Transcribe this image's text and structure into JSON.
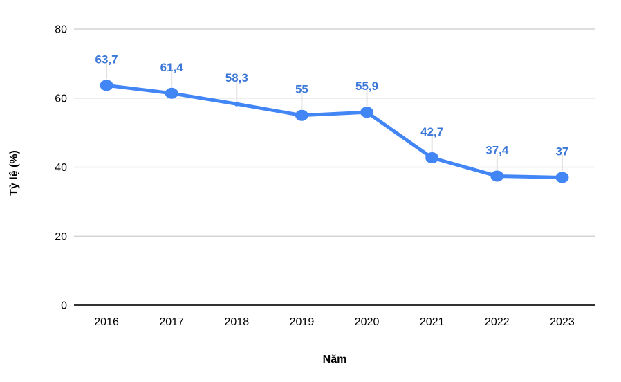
{
  "chart_data": {
    "type": "line",
    "title": "",
    "xlabel": "Năm",
    "ylabel": "Tỷ lệ (%)",
    "categories": [
      "2016",
      "2017",
      "2018",
      "2019",
      "2020",
      "2021",
      "2022",
      "2023"
    ],
    "values": [
      63.7,
      61.4,
      58.3,
      55,
      55.9,
      42.7,
      37.4,
      37
    ],
    "point_labels": [
      "63,7",
      "61,4",
      "58,3",
      "55",
      "55,9",
      "42,7",
      "37,4",
      "37"
    ],
    "marker_sizes": [
      "large",
      "large",
      "small",
      "large",
      "large",
      "large",
      "large",
      "large"
    ],
    "ylim": [
      0,
      80
    ],
    "yticks": [
      0,
      20,
      40,
      60,
      80
    ],
    "grid": true,
    "legend": "none",
    "colors": {
      "series": "#4285F4",
      "data_label": "#3C78D8",
      "gridline": "#CCCCCC",
      "axis_line": "#333333",
      "tick_label": "#000000",
      "leader_line": "#E0E0E0",
      "background": "#FFFFFF"
    }
  }
}
